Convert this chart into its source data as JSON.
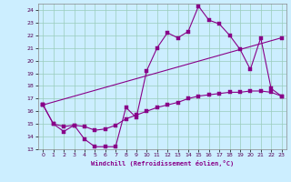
{
  "xlabel": "Windchill (Refroidissement éolien,°C)",
  "bg_color": "#cceeff",
  "line_color": "#880088",
  "grid_color": "#99ccbb",
  "xlim": [
    -0.5,
    23.5
  ],
  "ylim": [
    13,
    24.5
  ],
  "xticks": [
    0,
    1,
    2,
    3,
    4,
    5,
    6,
    7,
    8,
    9,
    10,
    11,
    12,
    13,
    14,
    15,
    16,
    17,
    18,
    19,
    20,
    21,
    22,
    23
  ],
  "yticks": [
    13,
    14,
    15,
    16,
    17,
    18,
    19,
    20,
    21,
    22,
    23,
    24
  ],
  "line1_x": [
    0,
    1,
    2,
    3,
    4,
    5,
    6,
    7,
    8,
    9,
    10,
    11,
    12,
    13,
    14,
    15,
    16,
    17,
    18,
    19,
    20,
    21,
    22,
    23
  ],
  "line1_y": [
    16.5,
    15.0,
    14.4,
    14.9,
    13.8,
    13.2,
    13.2,
    13.2,
    16.3,
    15.5,
    19.2,
    21.0,
    22.2,
    21.8,
    22.3,
    24.3,
    23.2,
    22.9,
    22.0,
    20.9,
    19.3,
    21.8,
    17.8,
    17.2
  ],
  "line2_x": [
    0,
    23
  ],
  "line2_y": [
    16.5,
    21.8
  ],
  "line3_x": [
    0,
    1,
    2,
    3,
    4,
    5,
    6,
    7,
    8,
    9,
    10,
    11,
    12,
    13,
    14,
    15,
    16,
    17,
    18,
    19,
    20,
    21,
    22,
    23
  ],
  "line3_y": [
    16.5,
    15.0,
    14.8,
    14.9,
    14.8,
    14.5,
    14.6,
    14.9,
    15.4,
    15.7,
    16.0,
    16.3,
    16.5,
    16.7,
    17.0,
    17.2,
    17.3,
    17.4,
    17.5,
    17.5,
    17.6,
    17.6,
    17.5,
    17.2
  ]
}
